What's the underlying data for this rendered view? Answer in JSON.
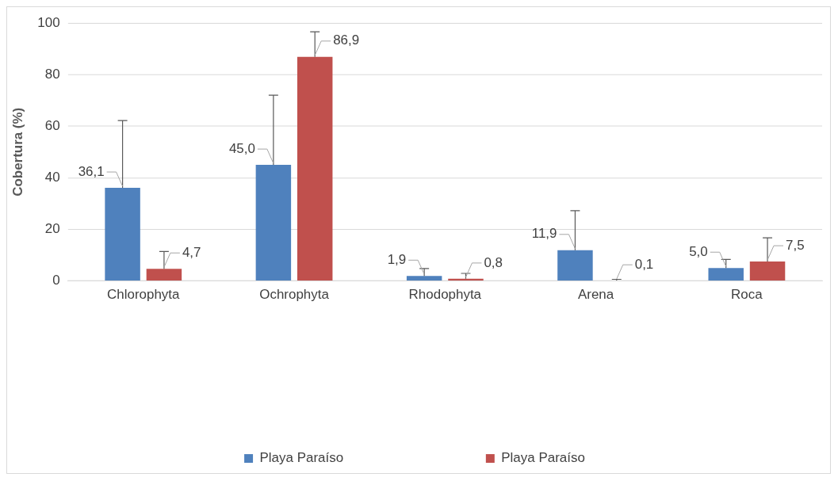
{
  "chart_data": {
    "type": "bar",
    "ylabel": "Cobertura (%)",
    "categories": [
      "Chlorophyta",
      "Ochrophyta",
      "Rhodophyta",
      "Arena",
      "Roca"
    ],
    "series": [
      {
        "name": "Playa Paraíso",
        "color": "#4f81bd",
        "values": [
          36.1,
          45.0,
          1.9,
          11.9,
          5.0
        ],
        "value_labels": [
          "36,1",
          "45,0",
          "1,9",
          "11,9",
          "5,0"
        ],
        "errors": [
          [
            36.1,
            62.2
          ],
          [
            45.0,
            72.0
          ],
          [
            1.9,
            4.8
          ],
          [
            11.9,
            27.2
          ],
          [
            5.0,
            8.3
          ]
        ]
      },
      {
        "name": "Playa Paraíso",
        "color": "#c0504d",
        "values": [
          4.7,
          86.9,
          0.8,
          0.1,
          7.5
        ],
        "value_labels": [
          "4,7",
          "86,9",
          "0,8",
          "0,1",
          "7,5"
        ],
        "errors": [
          [
            4.7,
            11.4
          ],
          [
            86.9,
            96.6
          ],
          [
            0.8,
            2.9
          ],
          [
            0.1,
            0.6
          ],
          [
            7.5,
            16.7
          ]
        ]
      }
    ],
    "ylim": [
      0,
      100
    ],
    "yticks": [
      0,
      20,
      40,
      60,
      80,
      100
    ],
    "grid": "y",
    "legend": "bottom"
  }
}
